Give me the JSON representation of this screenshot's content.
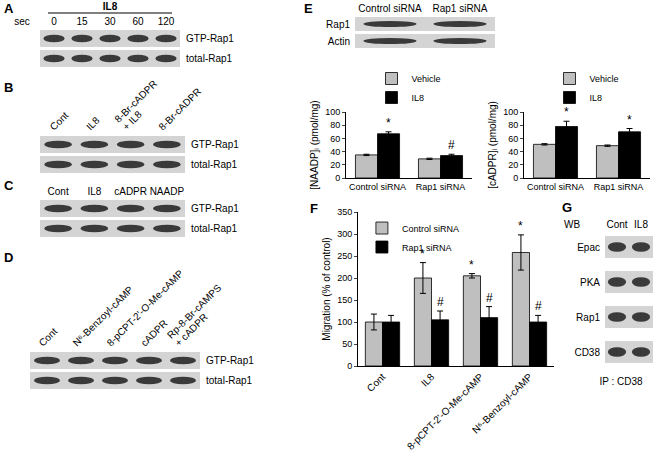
{
  "blots": [
    {
      "panel": "A",
      "title": "IL8",
      "lane_header": "sec",
      "lanes": [
        [
          "0"
        ],
        [
          "15"
        ],
        [
          "30"
        ],
        [
          "60"
        ],
        [
          "120"
        ]
      ],
      "rows": [
        "GTP-Rap1",
        "total-Rap1"
      ]
    },
    {
      "panel": "B",
      "lanes": [
        [
          "Cont"
        ],
        [
          "IL8"
        ],
        [
          "8-Br-cADPR",
          "+ IL8"
        ],
        [
          "8-Br-cADPR"
        ]
      ],
      "rows": [
        "GTP-Rap1",
        "total-Rap1"
      ]
    },
    {
      "panel": "C",
      "lanes": [
        [
          "Cont"
        ],
        [
          "IL8"
        ],
        [
          "cADPR"
        ],
        [
          "NAADP"
        ]
      ],
      "rows": [
        "GTP-Rap1",
        "total-Rap1"
      ]
    },
    {
      "panel": "D",
      "lanes": [
        [
          "Cont"
        ],
        [
          "N⁶-Benzoyl-cAMP"
        ],
        [
          "8-pCPT-2'-O-Me-cAMP"
        ],
        [
          "cADPR"
        ],
        [
          "Rp-8-Br-cAMPS",
          "+ cADPR"
        ]
      ],
      "rows": [
        "GTP-Rap1",
        "total-Rap1"
      ]
    },
    {
      "panel": "E",
      "lanes": [
        [
          "Control siRNA"
        ],
        [
          "Rap1 siRNA"
        ]
      ],
      "rows": [
        "Rap1",
        "Actin"
      ]
    },
    {
      "panel": "G",
      "lane_header": "WB",
      "lanes": [
        [
          "Cont"
        ],
        [
          "IL8"
        ]
      ],
      "rows": [
        "Epac",
        "PKA",
        "Rap1",
        "CD38"
      ],
      "footer": "IP : CD38"
    }
  ],
  "chart_data": [
    {
      "type": "bar",
      "y_label": "[NAADP]ᵢ (pmol/mg)",
      "categories": [
        "Control siRNA",
        "Rap1 siRNA"
      ],
      "series": [
        {
          "name": "Vehicle",
          "color": "#bfbfbf",
          "values": [
            35,
            29
          ],
          "errors": [
            1,
            1
          ]
        },
        {
          "name": "IL8",
          "color": "#000000",
          "values": [
            67,
            34
          ],
          "errors": [
            3,
            2
          ]
        }
      ],
      "annotations": [
        {
          "category": "Control siRNA",
          "series": "IL8",
          "text": "*"
        },
        {
          "category": "Rap1 siRNA",
          "series": "IL8",
          "text": "#"
        }
      ],
      "ylim": [
        0,
        100
      ],
      "yticks": [
        0,
        20,
        40,
        60,
        80,
        100
      ],
      "grid": false,
      "legend": "top"
    },
    {
      "type": "bar",
      "y_label": "[cADPR]ᵢ (pmol/mg)",
      "categories": [
        "Control siRNA",
        "Rap1 siRNA"
      ],
      "series": [
        {
          "name": "Vehicle",
          "color": "#bfbfbf",
          "values": [
            51,
            49
          ],
          "errors": [
            1,
            1
          ]
        },
        {
          "name": "IL8",
          "color": "#000000",
          "values": [
            78,
            70
          ],
          "errors": [
            8,
            5
          ]
        }
      ],
      "annotations": [
        {
          "category": "Control siRNA",
          "series": "IL8",
          "text": "*"
        },
        {
          "category": "Rap1 siRNA",
          "series": "IL8",
          "text": "*"
        }
      ],
      "ylim": [
        0,
        100
      ],
      "yticks": [
        0,
        20,
        40,
        60,
        80,
        100
      ],
      "grid": false,
      "legend": "top"
    },
    {
      "type": "bar",
      "panel": "F",
      "y_label": "Migration (% of control)",
      "categories": [
        "Cont",
        "IL8",
        "8-pCPT-2'-O-Me-cAMP",
        "N⁶-Benzoyl-cAMP"
      ],
      "series": [
        {
          "name": "Control siRNA",
          "color": "#bfbfbf",
          "values": [
            100,
            200,
            205,
            258
          ],
          "errors": [
            18,
            35,
            5,
            40
          ]
        },
        {
          "name": "Rap1 siRNA",
          "color": "#000000",
          "values": [
            100,
            105,
            110,
            100
          ],
          "errors": [
            15,
            20,
            25,
            15
          ]
        }
      ],
      "annotations": [
        {
          "category": "IL8",
          "series": "Control siRNA",
          "text": "*"
        },
        {
          "category": "8-pCPT-2'-O-Me-cAMP",
          "series": "Control siRNA",
          "text": "*"
        },
        {
          "category": "N⁶-Benzoyl-cAMP",
          "series": "Control siRNA",
          "text": "*"
        },
        {
          "category": "IL8",
          "series": "Rap1 siRNA",
          "text": "#"
        },
        {
          "category": "8-pCPT-2'-O-Me-cAMP",
          "series": "Rap1 siRNA",
          "text": "#"
        },
        {
          "category": "N⁶-Benzoyl-cAMP",
          "series": "Rap1 siRNA",
          "text": "#"
        }
      ],
      "ylim": [
        0,
        350
      ],
      "yticks": [
        0,
        50,
        100,
        150,
        200,
        250,
        300,
        350
      ],
      "grid": false,
      "legend": "upper left"
    }
  ]
}
